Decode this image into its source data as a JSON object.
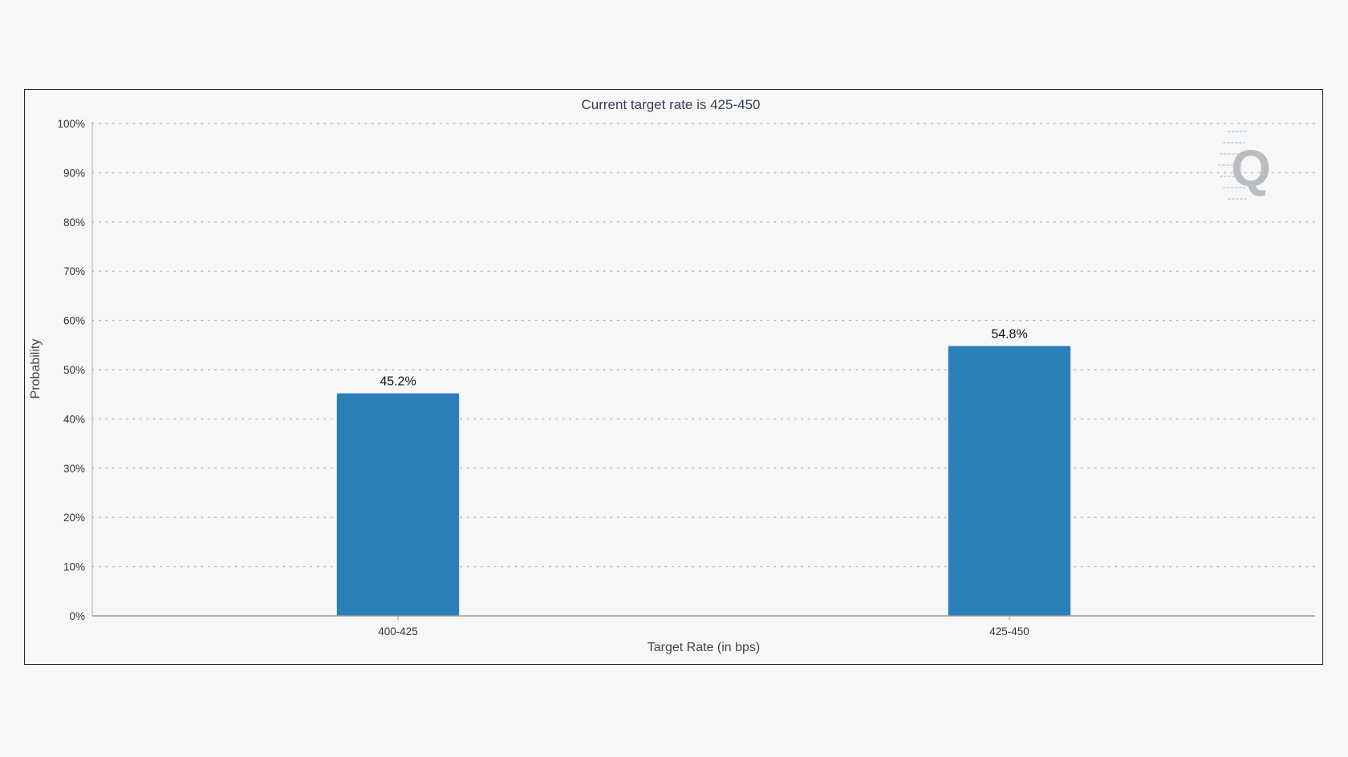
{
  "chart_data": {
    "type": "bar",
    "title": "Current target rate is 425-450",
    "xlabel": "Target Rate (in bps)",
    "ylabel": "Probability",
    "categories": [
      "400-425",
      "425-450"
    ],
    "values": [
      45.2,
      54.8
    ],
    "data_labels": [
      "45.2%",
      "54.8%"
    ],
    "ylim": [
      0,
      100
    ],
    "yticks": [
      0,
      10,
      20,
      30,
      40,
      50,
      60,
      70,
      80,
      90,
      100
    ],
    "ytick_labels": [
      "0%",
      "10%",
      "20%",
      "30%",
      "40%",
      "50%",
      "60%",
      "70%",
      "80%",
      "90%",
      "100%"
    ],
    "grid": true,
    "legend": "none",
    "bar_color": "#2a7fb8",
    "watermark": "Q"
  }
}
